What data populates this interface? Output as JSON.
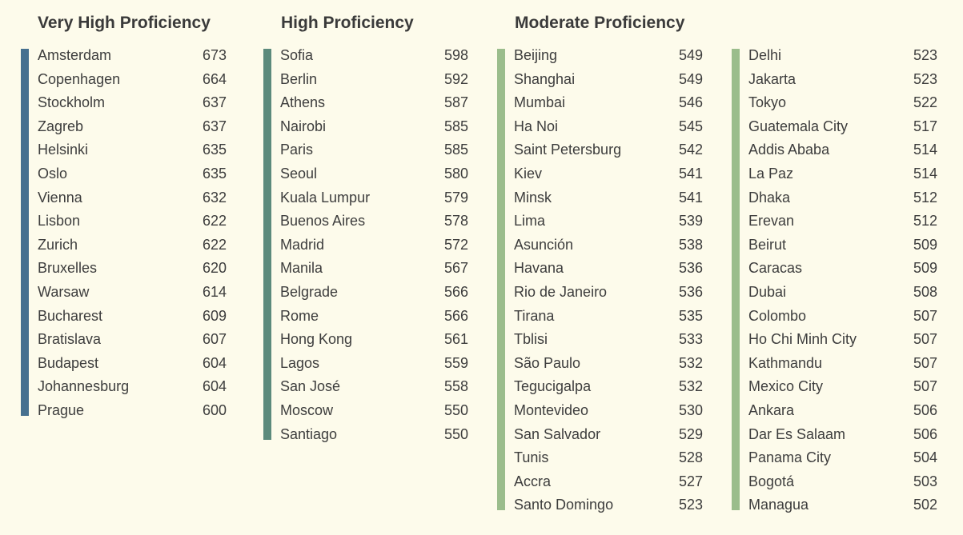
{
  "chart_data": {
    "type": "table",
    "groups": [
      {
        "title": "Very High Proficiency",
        "color": "#46708f",
        "columns": [
          [
            {
              "city": "Amsterdam",
              "score": 673
            },
            {
              "city": "Copenhagen",
              "score": 664
            },
            {
              "city": "Stockholm",
              "score": 637
            },
            {
              "city": "Zagreb",
              "score": 637
            },
            {
              "city": "Helsinki",
              "score": 635
            },
            {
              "city": "Oslo",
              "score": 635
            },
            {
              "city": "Vienna",
              "score": 632
            },
            {
              "city": "Lisbon",
              "score": 622
            },
            {
              "city": "Zurich",
              "score": 622
            },
            {
              "city": "Bruxelles",
              "score": 620
            },
            {
              "city": "Warsaw",
              "score": 614
            },
            {
              "city": "Bucharest",
              "score": 609
            },
            {
              "city": "Bratislava",
              "score": 607
            },
            {
              "city": "Budapest",
              "score": 604
            },
            {
              "city": "Johannesburg",
              "score": 604
            },
            {
              "city": "Prague",
              "score": 600
            }
          ]
        ]
      },
      {
        "title": "High Proficiency",
        "color": "#5c8a7c",
        "columns": [
          [
            {
              "city": "Sofia",
              "score": 598
            },
            {
              "city": "Berlin",
              "score": 592
            },
            {
              "city": "Athens",
              "score": 587
            },
            {
              "city": "Nairobi",
              "score": 585
            },
            {
              "city": "Paris",
              "score": 585
            },
            {
              "city": "Seoul",
              "score": 580
            },
            {
              "city": "Kuala Lumpur",
              "score": 579
            },
            {
              "city": "Buenos Aires",
              "score": 578
            },
            {
              "city": "Madrid",
              "score": 572
            },
            {
              "city": "Manila",
              "score": 567
            },
            {
              "city": "Belgrade",
              "score": 566
            },
            {
              "city": "Rome",
              "score": 566
            },
            {
              "city": "Hong Kong",
              "score": 561
            },
            {
              "city": "Lagos",
              "score": 559
            },
            {
              "city": "San José",
              "score": 558
            },
            {
              "city": "Moscow",
              "score": 550
            },
            {
              "city": "Santiago",
              "score": 550
            }
          ]
        ]
      },
      {
        "title": "Moderate Proficiency",
        "color": "#9bbd8c",
        "columns": [
          [
            {
              "city": "Beijing",
              "score": 549
            },
            {
              "city": "Shanghai",
              "score": 549
            },
            {
              "city": "Mumbai",
              "score": 546
            },
            {
              "city": "Ha Noi",
              "score": 545
            },
            {
              "city": "Saint Petersburg",
              "score": 542
            },
            {
              "city": "Kiev",
              "score": 541
            },
            {
              "city": "Minsk",
              "score": 541
            },
            {
              "city": "Lima",
              "score": 539
            },
            {
              "city": "Asunción",
              "score": 538
            },
            {
              "city": "Havana",
              "score": 536
            },
            {
              "city": "Rio de Janeiro",
              "score": 536
            },
            {
              "city": "Tirana",
              "score": 535
            },
            {
              "city": "Tblisi",
              "score": 533
            },
            {
              "city": "São Paulo",
              "score": 532
            },
            {
              "city": "Tegucigalpa",
              "score": 532
            },
            {
              "city": "Montevideo",
              "score": 530
            },
            {
              "city": "San Salvador",
              "score": 529
            },
            {
              "city": "Tunis",
              "score": 528
            },
            {
              "city": "Accra",
              "score": 527
            },
            {
              "city": "Santo Domingo",
              "score": 523
            }
          ],
          [
            {
              "city": "Delhi",
              "score": 523
            },
            {
              "city": "Jakarta",
              "score": 523
            },
            {
              "city": "Tokyo",
              "score": 522
            },
            {
              "city": "Guatemala City",
              "score": 517
            },
            {
              "city": "Addis Ababa",
              "score": 514
            },
            {
              "city": "La Paz",
              "score": 514
            },
            {
              "city": "Dhaka",
              "score": 512
            },
            {
              "city": "Erevan",
              "score": 512
            },
            {
              "city": "Beirut",
              "score": 509
            },
            {
              "city": "Caracas",
              "score": 509
            },
            {
              "city": "Dubai",
              "score": 508
            },
            {
              "city": "Colombo",
              "score": 507
            },
            {
              "city": "Ho Chi Minh City",
              "score": 507
            },
            {
              "city": "Kathmandu",
              "score": 507
            },
            {
              "city": "Mexico City",
              "score": 507
            },
            {
              "city": "Ankara",
              "score": 506
            },
            {
              "city": "Dar Es Salaam",
              "score": 506
            },
            {
              "city": "Panama City",
              "score": 504
            },
            {
              "city": "Bogotá",
              "score": 503
            },
            {
              "city": "Managua",
              "score": 502
            }
          ]
        ]
      }
    ]
  }
}
